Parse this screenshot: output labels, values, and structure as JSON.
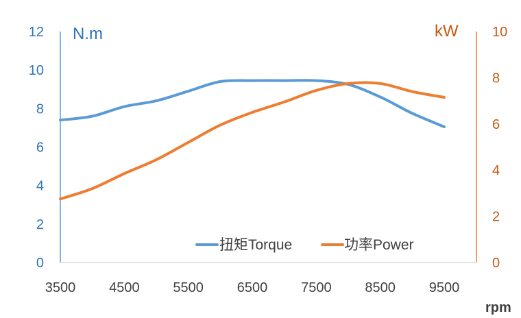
{
  "chart_data": {
    "type": "line",
    "x_unit": "rpm",
    "y_left_unit": "N.m",
    "y_right_unit": "kW",
    "x_ticks": [
      3500,
      4500,
      5500,
      6500,
      7500,
      8500,
      9500
    ],
    "x_range": [
      3500,
      9500
    ],
    "y_left_range": [
      0,
      12
    ],
    "y_left_ticks": [
      0,
      2,
      4,
      6,
      8,
      10,
      12
    ],
    "y_right_range": [
      0,
      10
    ],
    "y_right_ticks": [
      0,
      2,
      4,
      6,
      8,
      10
    ],
    "grid": false,
    "legend_position": "bottom-right inside plot",
    "series": [
      {
        "name": "扭矩Torque",
        "axis": "left",
        "color": "#5b9bd5",
        "x": [
          3500,
          4000,
          4500,
          5000,
          5500,
          6000,
          6500,
          7000,
          7500,
          8000,
          8500,
          9000,
          9500
        ],
        "y": [
          7.4,
          7.6,
          8.1,
          8.4,
          8.9,
          9.4,
          9.45,
          9.45,
          9.45,
          9.25,
          8.6,
          7.75,
          7.05
        ]
      },
      {
        "name": "功率Power",
        "axis": "right",
        "color": "#ed7d31",
        "x": [
          3500,
          4000,
          4500,
          5000,
          5500,
          6000,
          6500,
          7000,
          7500,
          8000,
          8500,
          9000,
          9500
        ],
        "y": [
          2.75,
          3.2,
          3.85,
          4.45,
          5.2,
          5.95,
          6.5,
          6.95,
          7.45,
          7.75,
          7.75,
          7.4,
          7.15
        ]
      }
    ]
  }
}
